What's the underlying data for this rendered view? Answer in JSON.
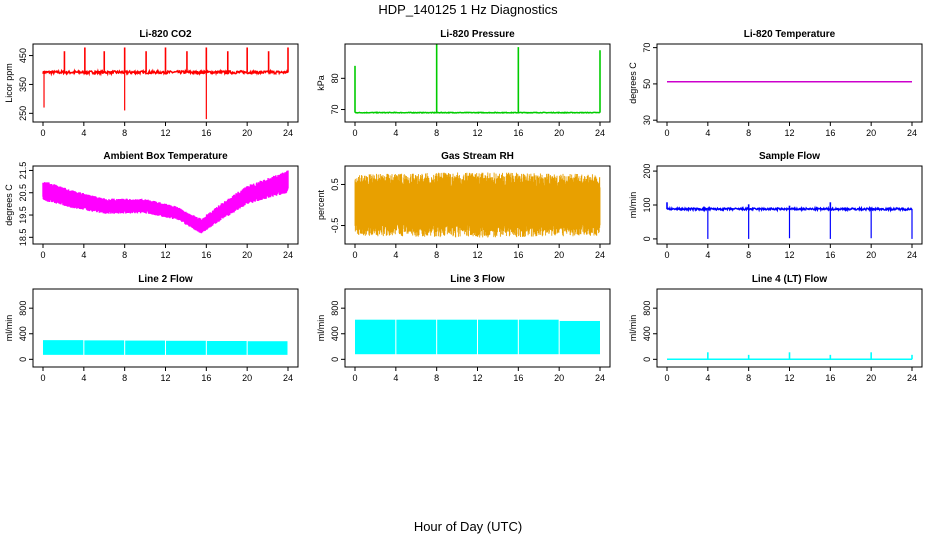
{
  "figure": {
    "title": "HDP_140125  1 Hz Diagnostics",
    "xlabel": "Hour of Day (UTC)"
  },
  "chart_data": [
    {
      "type": "line",
      "title": "Li-820 CO2",
      "ylabel": "Licor ppm",
      "color": "#ff0000",
      "xlim": [
        0,
        24
      ],
      "ylim": [
        220,
        490
      ],
      "xticks": [
        0,
        4,
        8,
        12,
        16,
        20,
        24
      ],
      "yticks": [
        250,
        350,
        450
      ],
      "baseline": 392,
      "noise": 5,
      "kind": "co2",
      "spikes_up": [
        [
          2.1,
          465
        ],
        [
          4.1,
          478
        ],
        [
          6.0,
          465
        ],
        [
          8.0,
          478
        ],
        [
          10.1,
          465
        ],
        [
          12.0,
          478
        ],
        [
          14.1,
          465
        ],
        [
          16.0,
          478
        ],
        [
          18.1,
          465
        ],
        [
          20.0,
          478
        ],
        [
          22.1,
          465
        ],
        [
          24.0,
          478
        ]
      ],
      "spikes_down": [
        [
          0.1,
          270
        ],
        [
          8.0,
          260
        ],
        [
          16.0,
          230
        ]
      ]
    },
    {
      "type": "line",
      "title": "Li-820 Pressure",
      "ylabel": "kPa",
      "color": "#00cc00",
      "xlim": [
        0,
        24
      ],
      "ylim": [
        66,
        91
      ],
      "xticks": [
        0,
        4,
        8,
        12,
        16,
        20,
        24
      ],
      "yticks": [
        70,
        80
      ],
      "baseline": 69,
      "noise": 0.1,
      "kind": "pressure",
      "spikes_up": [
        [
          0.0,
          84
        ],
        [
          8.0,
          91
        ],
        [
          16.0,
          90
        ],
        [
          24.0,
          89
        ]
      ],
      "spikes_down": []
    },
    {
      "type": "line",
      "title": "Li-820 Temperature",
      "ylabel": "degrees C",
      "color": "#cc00cc",
      "xlim": [
        0,
        24
      ],
      "ylim": [
        29,
        72
      ],
      "xticks": [
        0,
        4,
        8,
        12,
        16,
        20,
        24
      ],
      "yticks": [
        30,
        50,
        70
      ],
      "baseline": 51.2,
      "noise": 0,
      "kind": "flat",
      "spikes_up": [],
      "spikes_down": []
    },
    {
      "type": "line",
      "title": "Ambient Box Temperature",
      "ylabel": "degrees C",
      "color": "#ff00ff",
      "xlim": [
        0,
        24
      ],
      "ylim": [
        18.2,
        21.7
      ],
      "xticks": [
        0,
        4,
        8,
        12,
        16,
        20,
        24
      ],
      "yticks": [
        18.5,
        19.5,
        20.5,
        21.5
      ],
      "kind": "band",
      "center": [
        [
          0,
          20.6
        ],
        [
          3,
          20.2
        ],
        [
          6,
          19.9
        ],
        [
          10,
          19.9
        ],
        [
          13,
          19.6
        ],
        [
          15.5,
          19.0
        ],
        [
          17,
          19.5
        ],
        [
          20,
          20.4
        ],
        [
          24,
          21.0
        ]
      ],
      "spread": [
        [
          0,
          0.45
        ],
        [
          6,
          0.35
        ],
        [
          14,
          0.3
        ],
        [
          16,
          0.35
        ],
        [
          24,
          0.5
        ]
      ]
    },
    {
      "type": "line",
      "title": "Gas Stream RH",
      "ylabel": "percent",
      "color": "#e8a000",
      "xlim": [
        0,
        24
      ],
      "ylim": [
        -0.95,
        0.95
      ],
      "xticks": [
        0,
        4,
        8,
        12,
        16,
        20,
        24
      ],
      "yticks": [
        -0.5,
        0.5
      ],
      "kind": "rh",
      "spread": [
        [
          0,
          0.75
        ],
        [
          12,
          0.8
        ],
        [
          24,
          0.75
        ]
      ]
    },
    {
      "type": "line",
      "title": "Sample Flow",
      "ylabel": "ml/min",
      "color": "#0000ff",
      "xlim": [
        0,
        24
      ],
      "ylim": [
        -15,
        215
      ],
      "xticks": [
        0,
        4,
        8,
        12,
        16,
        20,
        24
      ],
      "yticks": [
        0,
        100,
        200
      ],
      "baseline": 88,
      "noise": 3,
      "kind": "flow",
      "spikes_up": [
        [
          0.0,
          108
        ],
        [
          8.0,
          102
        ],
        [
          12.0,
          98
        ],
        [
          16.0,
          108
        ]
      ],
      "spikes_down": [
        [
          4.0,
          0
        ],
        [
          8.0,
          0
        ],
        [
          12.0,
          2
        ],
        [
          16.0,
          0
        ],
        [
          20.0,
          2
        ],
        [
          24.0,
          0
        ]
      ]
    },
    {
      "type": "area",
      "title": "Line 2 Flow",
      "ylabel": "ml/min",
      "color": "#00ffff",
      "xlim": [
        0,
        24
      ],
      "ylim": [
        -120,
        1100
      ],
      "xticks": [
        0,
        4,
        8,
        12,
        16,
        20,
        24
      ],
      "yticks": [
        0,
        400,
        800
      ],
      "kind": "block",
      "low": 70,
      "high": [
        [
          0,
          300
        ],
        [
          24,
          280
        ]
      ],
      "gaps": [
        4,
        8,
        12,
        16,
        20,
        24
      ]
    },
    {
      "type": "area",
      "title": "Line 3 Flow",
      "ylabel": "ml/min",
      "color": "#00ffff",
      "xlim": [
        0,
        24
      ],
      "ylim": [
        -120,
        1100
      ],
      "xticks": [
        0,
        4,
        8,
        12,
        16,
        20,
        24
      ],
      "yticks": [
        0,
        400,
        800
      ],
      "kind": "block",
      "low": 80,
      "high": [
        [
          0,
          620
        ],
        [
          20,
          620
        ],
        [
          20,
          600
        ],
        [
          24,
          600
        ]
      ],
      "gaps": [
        4,
        8,
        12,
        16,
        20
      ]
    },
    {
      "type": "line",
      "title": "Line 4 (LT) Flow",
      "ylabel": "ml/min",
      "color": "#00ffff",
      "xlim": [
        0,
        24
      ],
      "ylim": [
        -120,
        1100
      ],
      "xticks": [
        0,
        4,
        8,
        12,
        16,
        20,
        24
      ],
      "yticks": [
        0,
        400,
        800
      ],
      "baseline": 0,
      "noise": 0,
      "kind": "flat",
      "spikes_up": [
        [
          4.0,
          110
        ],
        [
          8.0,
          70
        ],
        [
          12.0,
          110
        ],
        [
          16.0,
          70
        ],
        [
          20.0,
          110
        ],
        [
          24.0,
          70
        ]
      ],
      "spikes_down": []
    }
  ]
}
